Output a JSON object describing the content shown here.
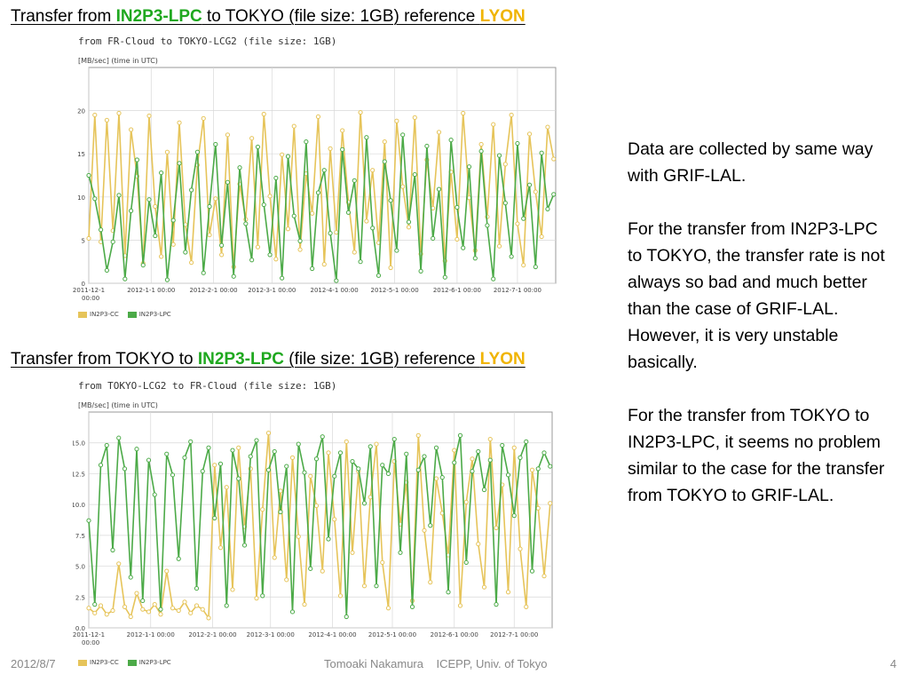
{
  "headings": [
    {
      "pre": "Transfer from ",
      "site": "IN2P3-LPC",
      "mid": " to TOKYO (file size: 1GB) reference ",
      "ref": "LYON"
    },
    {
      "pre": "Transfer from TOKYO to ",
      "site": "IN2P3-LPC",
      "mid": " (file size: 1GB) reference ",
      "ref": "LYON"
    }
  ],
  "notes": [
    "Data are collected by same way with GRIF-LAL.",
    "For the transfer from IN2P3-LPC to TOKYO, the transfer rate is not always so bad and much better than the case of GRIF-LAL. However, it is very unstable basically.",
    "For the transfer from TOKYO to IN2P3-LPC, it seems no problem similar to the case for the transfer from TOKYO to GRIF-LAL."
  ],
  "footer": {
    "date": "2012/8/7",
    "author": "Tomoaki Nakamura",
    "affiliation": "ICEPP, Univ. of Tokyo",
    "page": "4"
  },
  "colors": {
    "IN2P3-CC": "#e6c45a",
    "IN2P3-LPC": "#4caa48"
  },
  "chart_data": [
    {
      "type": "line",
      "title": "from FR-Cloud to TOKYO-LCG2 (file size: 1GB)",
      "ylabel": "[MB/sec] (time in UTC)",
      "ylim": [
        0,
        25
      ],
      "yticks": [
        "0",
        "5",
        "10",
        "15",
        "20"
      ],
      "xlim": [
        "2011-12-1",
        "2012-7-20"
      ],
      "x_ticks": [
        {
          "date": "2011-12-1",
          "label": "2011-12-1",
          "label2": "00:00"
        },
        {
          "date": "2012-1-1",
          "label": "2012-1-1 00:00"
        },
        {
          "date": "2012-2-1",
          "label": "2012-2-1 00:00"
        },
        {
          "date": "2012-3-1",
          "label": "2012-3-1 00:00"
        },
        {
          "date": "2012-4-1",
          "label": "2012-4-1 00:00"
        },
        {
          "date": "2012-5-1",
          "label": "2012-5-1 00:00"
        },
        {
          "date": "2012-6-1",
          "label": "2012-6-1 00:00"
        },
        {
          "date": "2012-7-1",
          "label": "2012-7-1 00:00"
        }
      ],
      "series": [
        {
          "name": "IN2P3-CC",
          "color": "#e6c45a",
          "x": [
            "2011-12-1",
            "2011-12-4",
            "2011-12-7",
            "2011-12-10",
            "2011-12-13",
            "2011-12-16",
            "2011-12-19",
            "2011-12-22",
            "2011-12-25",
            "2011-12-28",
            "2011-12-31",
            "2012-1-3",
            "2012-1-6",
            "2012-1-9",
            "2012-1-12",
            "2012-1-15",
            "2012-1-18",
            "2012-1-21",
            "2012-1-24",
            "2012-1-27",
            "2012-1-30",
            "2012-2-2",
            "2012-2-5",
            "2012-2-8",
            "2012-2-11",
            "2012-2-14",
            "2012-2-17",
            "2012-2-20",
            "2012-2-23",
            "2012-2-26",
            "2012-2-29",
            "2012-3-3",
            "2012-3-6",
            "2012-3-9",
            "2012-3-12",
            "2012-3-15",
            "2012-3-18",
            "2012-3-21",
            "2012-3-24",
            "2012-3-27",
            "2012-3-30",
            "2012-4-2",
            "2012-4-5",
            "2012-4-8",
            "2012-4-11",
            "2012-4-14",
            "2012-4-17",
            "2012-4-20",
            "2012-4-23",
            "2012-4-26",
            "2012-4-29",
            "2012-5-2",
            "2012-5-5",
            "2012-5-8",
            "2012-5-11",
            "2012-5-14",
            "2012-5-17",
            "2012-5-20",
            "2012-5-23",
            "2012-5-26",
            "2012-5-29",
            "2012-6-1",
            "2012-6-4",
            "2012-6-7",
            "2012-6-10",
            "2012-6-13",
            "2012-6-16",
            "2012-6-19",
            "2012-6-22",
            "2012-6-25",
            "2012-6-28",
            "2012-7-1",
            "2012-7-4",
            "2012-7-7",
            "2012-7-10",
            "2012-7-13",
            "2012-7-16",
            "2012-7-19"
          ],
          "values": [
            5.2,
            19.5,
            4.8,
            18.9,
            6.1,
            19.7,
            3.2,
            17.8,
            12.4,
            2.3,
            19.4,
            8.9,
            3.1,
            15.2,
            4.5,
            18.6,
            6.8,
            2.4,
            13.7,
            19.1,
            5.6,
            9.8,
            3.3,
            17.2,
            1.9,
            11.5,
            7.4,
            16.8,
            4.2,
            19.6,
            10.1,
            2.8,
            14.9,
            6.3,
            18.2,
            3.9,
            12.7,
            8.1,
            19.3,
            2.2,
            15.6,
            5.9,
            17.7,
            9.4,
            3.6,
            19.8,
            7.2,
            13.1,
            4.7,
            16.4,
            1.8,
            18.8,
            11.2,
            6.5,
            19.2,
            3.4,
            14.3,
            8.7,
            17.5,
            2.6,
            12.9,
            5.1,
            19.7,
            9.9,
            3.8,
            16.1,
            7.7,
            18.4,
            4.3,
            13.8,
            19.5,
            6.9,
            2.1,
            17.3,
            10.6,
            5.4,
            18.1,
            14.4
          ]
        },
        {
          "name": "IN2P3-LPC",
          "color": "#4caa48",
          "x": [
            "2011-12-1",
            "2011-12-4",
            "2011-12-7",
            "2011-12-10",
            "2011-12-13",
            "2011-12-16",
            "2011-12-19",
            "2011-12-22",
            "2011-12-25",
            "2011-12-28",
            "2011-12-31",
            "2012-1-3",
            "2012-1-6",
            "2012-1-9",
            "2012-1-12",
            "2012-1-15",
            "2012-1-18",
            "2012-1-21",
            "2012-1-24",
            "2012-1-27",
            "2012-1-30",
            "2012-2-2",
            "2012-2-5",
            "2012-2-8",
            "2012-2-11",
            "2012-2-14",
            "2012-2-17",
            "2012-2-20",
            "2012-2-23",
            "2012-2-26",
            "2012-2-29",
            "2012-3-3",
            "2012-3-6",
            "2012-3-9",
            "2012-3-12",
            "2012-3-15",
            "2012-3-18",
            "2012-3-21",
            "2012-3-24",
            "2012-3-27",
            "2012-3-30",
            "2012-4-2",
            "2012-4-5",
            "2012-4-8",
            "2012-4-11",
            "2012-4-14",
            "2012-4-17",
            "2012-4-20",
            "2012-4-23",
            "2012-4-26",
            "2012-4-29",
            "2012-5-2",
            "2012-5-5",
            "2012-5-8",
            "2012-5-11",
            "2012-5-14",
            "2012-5-17",
            "2012-5-20",
            "2012-5-23",
            "2012-5-26",
            "2012-5-29",
            "2012-6-1",
            "2012-6-4",
            "2012-6-7",
            "2012-6-10",
            "2012-6-13",
            "2012-6-16",
            "2012-6-19",
            "2012-6-22",
            "2012-6-25",
            "2012-6-28",
            "2012-7-1",
            "2012-7-4",
            "2012-7-7",
            "2012-7-10",
            "2012-7-13",
            "2012-7-16",
            "2012-7-19"
          ],
          "values": [
            12.5,
            9.8,
            6.2,
            1.5,
            4.8,
            10.2,
            0.5,
            8.4,
            14.3,
            2.1,
            9.7,
            5.5,
            12.8,
            0.4,
            7.3,
            13.9,
            3.6,
            10.8,
            15.2,
            1.2,
            8.9,
            16.1,
            4.4,
            11.7,
            0.8,
            13.4,
            6.9,
            2.7,
            15.8,
            9.1,
            3.3,
            12.2,
            0.6,
            14.7,
            7.8,
            4.9,
            16.4,
            1.7,
            10.5,
            13.1,
            5.8,
            0.3,
            15.5,
            8.2,
            11.9,
            2.5,
            16.9,
            6.4,
            0.9,
            14.1,
            9.6,
            3.8,
            17.2,
            7.1,
            12.6,
            1.4,
            15.9,
            5.2,
            10.9,
            0.7,
            16.6,
            8.8,
            4.1,
            13.5,
            2.9,
            15.3,
            6.7,
            0.5,
            14.8,
            9.3,
            3.1,
            16.2,
            7.5,
            11.4,
            1.9,
            15.1,
            8.6,
            10.3
          ]
        }
      ]
    },
    {
      "type": "line",
      "title": "from TOKYO-LCG2 to FR-Cloud (file size: 1GB)",
      "ylabel": "[MB/sec] (time in UTC)",
      "ylim": [
        0,
        17.5
      ],
      "yticks": [
        "0.0",
        "2.5",
        "5.0",
        "7.5",
        "10.0",
        "12.5",
        "15.0"
      ],
      "xlim": [
        "2011-12-1",
        "2012-7-20"
      ],
      "x_ticks": [
        {
          "date": "2011-12-1",
          "label": "2011-12-1",
          "label2": "00:00"
        },
        {
          "date": "2012-1-1",
          "label": "2012-1-1 00:00"
        },
        {
          "date": "2012-2-1",
          "label": "2012-2-1 00:00"
        },
        {
          "date": "2012-3-1",
          "label": "2012-3-1 00:00"
        },
        {
          "date": "2012-4-1",
          "label": "2012-4-1 00:00"
        },
        {
          "date": "2012-5-1",
          "label": "2012-5-1 00:00"
        },
        {
          "date": "2012-6-1",
          "label": "2012-6-1 00:00"
        },
        {
          "date": "2012-7-1",
          "label": "2012-7-1 00:00"
        }
      ],
      "series": [
        {
          "name": "IN2P3-CC",
          "color": "#e6c45a",
          "x": [
            "2011-12-1",
            "2011-12-4",
            "2011-12-7",
            "2011-12-10",
            "2011-12-13",
            "2011-12-16",
            "2011-12-19",
            "2011-12-22",
            "2011-12-25",
            "2011-12-28",
            "2011-12-31",
            "2012-1-3",
            "2012-1-6",
            "2012-1-9",
            "2012-1-12",
            "2012-1-15",
            "2012-1-18",
            "2012-1-21",
            "2012-1-24",
            "2012-1-27",
            "2012-1-30",
            "2012-2-2",
            "2012-2-5",
            "2012-2-8",
            "2012-2-11",
            "2012-2-14",
            "2012-2-17",
            "2012-2-20",
            "2012-2-23",
            "2012-2-26",
            "2012-2-29",
            "2012-3-3",
            "2012-3-6",
            "2012-3-9",
            "2012-3-12",
            "2012-3-15",
            "2012-3-18",
            "2012-3-21",
            "2012-3-24",
            "2012-3-27",
            "2012-3-30",
            "2012-4-2",
            "2012-4-5",
            "2012-4-8",
            "2012-4-11",
            "2012-4-14",
            "2012-4-17",
            "2012-4-20",
            "2012-4-23",
            "2012-4-26",
            "2012-4-29",
            "2012-5-2",
            "2012-5-5",
            "2012-5-8",
            "2012-5-11",
            "2012-5-14",
            "2012-5-17",
            "2012-5-20",
            "2012-5-23",
            "2012-5-26",
            "2012-5-29",
            "2012-6-1",
            "2012-6-4",
            "2012-6-7",
            "2012-6-10",
            "2012-6-13",
            "2012-6-16",
            "2012-6-19",
            "2012-6-22",
            "2012-6-25",
            "2012-6-28",
            "2012-7-1",
            "2012-7-4",
            "2012-7-7",
            "2012-7-10",
            "2012-7-13",
            "2012-7-16",
            "2012-7-19"
          ],
          "values": [
            1.6,
            1.2,
            1.8,
            1.1,
            1.4,
            5.2,
            1.7,
            0.9,
            2.8,
            1.5,
            1.3,
            1.9,
            1.1,
            4.6,
            1.6,
            1.4,
            2.1,
            1.2,
            1.8,
            1.5,
            0.8,
            13.2,
            6.5,
            11.4,
            3.1,
            14.6,
            8.2,
            12.9,
            2.4,
            9.6,
            15.8,
            5.7,
            11.1,
            3.9,
            13.8,
            7.4,
            1.9,
            12.3,
            9.9,
            4.6,
            14.2,
            8.8,
            2.6,
            15.1,
            6.1,
            12.7,
            3.4,
            10.6,
            14.9,
            5.3,
            1.6,
            13.5,
            8.4,
            11.8,
            2.2,
            15.6,
            7.9,
            3.7,
            12.1,
            9.3,
            5.9,
            14.4,
            1.8,
            10.2,
            13.7,
            6.8,
            3.3,
            15.3,
            8.1,
            11.6,
            2.9,
            14.6,
            6.4,
            1.7,
            12.8,
            9.7,
            4.2,
            10.1
          ]
        },
        {
          "name": "IN2P3-LPC",
          "color": "#4caa48",
          "x": [
            "2011-12-1",
            "2011-12-4",
            "2011-12-7",
            "2011-12-10",
            "2011-12-13",
            "2011-12-16",
            "2011-12-19",
            "2011-12-22",
            "2011-12-25",
            "2011-12-28",
            "2011-12-31",
            "2012-1-3",
            "2012-1-6",
            "2012-1-9",
            "2012-1-12",
            "2012-1-15",
            "2012-1-18",
            "2012-1-21",
            "2012-1-24",
            "2012-1-27",
            "2012-1-30",
            "2012-2-2",
            "2012-2-5",
            "2012-2-8",
            "2012-2-11",
            "2012-2-14",
            "2012-2-17",
            "2012-2-20",
            "2012-2-23",
            "2012-2-26",
            "2012-2-29",
            "2012-3-3",
            "2012-3-6",
            "2012-3-9",
            "2012-3-12",
            "2012-3-15",
            "2012-3-18",
            "2012-3-21",
            "2012-3-24",
            "2012-3-27",
            "2012-3-30",
            "2012-4-2",
            "2012-4-5",
            "2012-4-8",
            "2012-4-11",
            "2012-4-14",
            "2012-4-17",
            "2012-4-20",
            "2012-4-23",
            "2012-4-26",
            "2012-4-29",
            "2012-5-2",
            "2012-5-5",
            "2012-5-8",
            "2012-5-11",
            "2012-5-14",
            "2012-5-17",
            "2012-5-20",
            "2012-5-23",
            "2012-5-26",
            "2012-5-29",
            "2012-6-1",
            "2012-6-4",
            "2012-6-7",
            "2012-6-10",
            "2012-6-13",
            "2012-6-16",
            "2012-6-19",
            "2012-6-22",
            "2012-6-25",
            "2012-6-28",
            "2012-7-1",
            "2012-7-4",
            "2012-7-7",
            "2012-7-10",
            "2012-7-13",
            "2012-7-16",
            "2012-7-19"
          ],
          "values": [
            8.7,
            1.9,
            13.2,
            14.8,
            6.3,
            15.4,
            12.9,
            4.1,
            14.5,
            2.2,
            13.6,
            10.8,
            1.5,
            14.1,
            12.4,
            5.6,
            13.8,
            15.1,
            3.2,
            12.7,
            14.6,
            8.9,
            13.3,
            1.8,
            14.4,
            12.1,
            6.7,
            13.9,
            15.2,
            2.6,
            12.8,
            14.3,
            9.4,
            13.1,
            1.3,
            14.9,
            12.6,
            4.8,
            13.7,
            15.5,
            7.2,
            12.3,
            14.2,
            0.9,
            13.5,
            12.9,
            10.1,
            14.7,
            3.4,
            13.2,
            12.5,
            15.3,
            6.1,
            14.1,
            1.7,
            12.8,
            13.9,
            8.3,
            14.6,
            12.2,
            2.9,
            13.4,
            15.6,
            5.3,
            12.7,
            14.3,
            11.2,
            13.6,
            1.9,
            14.8,
            12.4,
            9.1,
            13.8,
            15.1,
            4.6,
            12.9,
            14.2,
            13.1
          ]
        }
      ]
    }
  ]
}
